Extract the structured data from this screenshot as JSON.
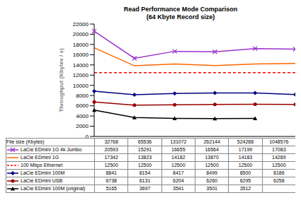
{
  "chart_data": {
    "type": "line",
    "title": "Read Performance Mode Comparison",
    "subtitle": "(64 Kbyte Record size)",
    "x_label": "File size (Kbytes)",
    "y_label": "Throughput (Kbytes / s)",
    "categories": [
      "32768",
      "65536",
      "131072",
      "262144",
      "524288",
      "1048576"
    ],
    "ylim": [
      0,
      22000
    ],
    "yticks": [
      0,
      2000,
      4000,
      6000,
      8000,
      10000,
      12000,
      14000,
      16000,
      18000,
      20000,
      22000
    ],
    "grid": false,
    "legend": "bottom",
    "tick_labels": "y",
    "series": [
      {
        "name": "LaCie EDmini 1G 4k Jumbo",
        "color": "#9933cc",
        "marker": "x",
        "line_style": "solid",
        "values": [
          20593,
          15291,
          16655,
          16564,
          17199,
          17083
        ]
      },
      {
        "name": "LaCie EDmini 1G",
        "color": "#ff6600",
        "marker": "none",
        "line_style": "solid",
        "values": [
          17342,
          13823,
          14182,
          13870,
          14183,
          14289
        ]
      },
      {
        "name": "100 Mbps Ethernet",
        "color": "#ff0000",
        "marker": "none",
        "line_style": "dashed",
        "values": [
          12500,
          12500,
          12500,
          12500,
          12500,
          12500
        ]
      },
      {
        "name": "LaCie EDmini 100M",
        "color": "#000080",
        "marker": "diamond",
        "line_style": "solid",
        "values": [
          8841,
          8154,
          8417,
          8499,
          8500,
          8186
        ]
      },
      {
        "name": "LaCie EDmini USB",
        "color": "#990000",
        "marker": "circle",
        "line_style": "solid",
        "values": [
          6738,
          6131,
          6204,
          6260,
          6295,
          6258
        ]
      },
      {
        "name": "LaCie EDmini 100M (original)",
        "color": "#000000",
        "marker": "triangle",
        "line_style": "solid",
        "values": [
          5165,
          3697,
          3541,
          3501,
          3512,
          null
        ]
      }
    ]
  }
}
